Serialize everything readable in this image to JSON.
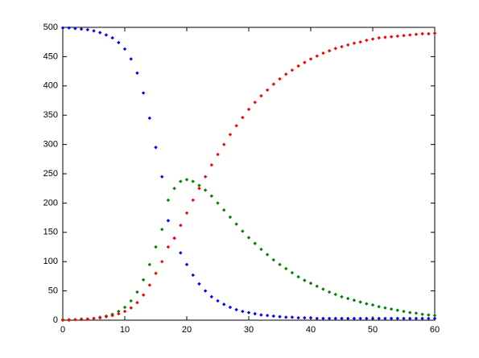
{
  "chart_data": {
    "type": "scatter",
    "x": [
      0,
      1,
      2,
      3,
      4,
      5,
      6,
      7,
      8,
      9,
      10,
      11,
      12,
      13,
      14,
      15,
      16,
      17,
      18,
      19,
      20,
      21,
      22,
      23,
      24,
      25,
      26,
      27,
      28,
      29,
      30,
      31,
      32,
      33,
      34,
      35,
      36,
      37,
      38,
      39,
      40,
      41,
      42,
      43,
      44,
      45,
      46,
      47,
      48,
      49,
      50,
      51,
      52,
      53,
      54,
      55,
      56,
      57,
      58,
      59,
      60
    ],
    "series": [
      {
        "color": "#0000ff",
        "values": [
          499,
          499,
          498,
          497,
          496,
          494,
          491,
          487,
          482,
          474,
          463,
          446,
          422,
          388,
          345,
          295,
          245,
          170,
          140,
          115,
          95,
          77,
          62,
          50,
          40,
          33,
          27,
          22,
          18,
          15,
          13,
          11,
          9,
          8,
          7,
          6,
          5,
          5,
          4,
          4,
          4,
          3,
          3,
          3,
          3,
          3,
          3,
          3,
          3,
          3,
          3,
          3,
          3,
          3,
          3,
          3,
          3,
          3,
          3,
          3,
          3
        ]
      },
      {
        "color": "#008000",
        "values": [
          1,
          1,
          1,
          2,
          2,
          3,
          5,
          7,
          10,
          15,
          22,
          33,
          48,
          69,
          95,
          125,
          155,
          205,
          225,
          237,
          240,
          237,
          230,
          222,
          212,
          200,
          188,
          176,
          164,
          152,
          141,
          131,
          121,
          112,
          103,
          95,
          88,
          81,
          74,
          68,
          63,
          58,
          53,
          48,
          44,
          40,
          37,
          34,
          31,
          28,
          26,
          23,
          21,
          19,
          17,
          15,
          13,
          12,
          10,
          9,
          8
        ]
      },
      {
        "color": "#ff0000",
        "values": [
          0,
          0,
          1,
          1,
          2,
          3,
          4,
          6,
          8,
          11,
          15,
          21,
          30,
          43,
          60,
          80,
          100,
          125,
          140,
          162,
          183,
          205,
          225,
          245,
          265,
          283,
          300,
          317,
          332,
          346,
          360,
          372,
          383,
          393,
          403,
          412,
          420,
          427,
          434,
          440,
          446,
          451,
          456,
          460,
          464,
          467,
          470,
          473,
          475,
          478,
          480,
          482,
          483,
          484,
          485,
          486,
          487,
          488,
          489,
          489,
          490
        ]
      }
    ],
    "xlim": [
      0,
      60
    ],
    "xticks": [
      0,
      10,
      20,
      30,
      40,
      50,
      60
    ],
    "ylim": [
      0,
      500
    ],
    "yticks": [
      0,
      50,
      100,
      150,
      200,
      250,
      300,
      350,
      400,
      450,
      500
    ]
  }
}
